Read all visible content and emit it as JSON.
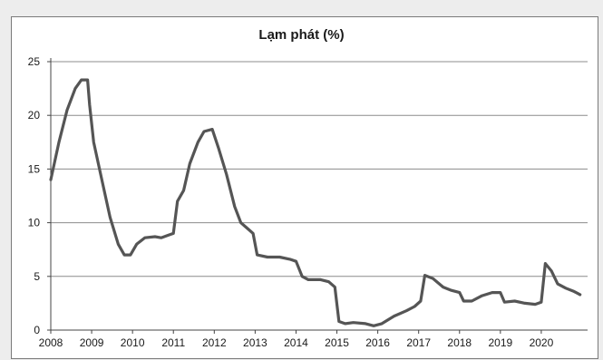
{
  "chart_data": {
    "type": "line",
    "title": "Lạm phát (%)",
    "xlabel": "",
    "ylabel": "",
    "ylim": [
      0,
      25
    ],
    "yticks": [
      0,
      5,
      10,
      15,
      20,
      25
    ],
    "xlim": [
      2008.0,
      2021.0
    ],
    "xtick_labels": [
      "2008",
      "2009",
      "2010",
      "2011",
      "2012",
      "2013",
      "2014",
      "2015",
      "2016",
      "2017",
      "2018",
      "2019",
      "2020"
    ],
    "grid": true,
    "legend": "none",
    "series": [
      {
        "color": "#555555",
        "points": [
          [
            2008.0,
            14.0
          ],
          [
            2008.2,
            17.5
          ],
          [
            2008.4,
            20.5
          ],
          [
            2008.6,
            22.5
          ],
          [
            2008.75,
            23.3
          ],
          [
            2008.9,
            23.3
          ],
          [
            2008.95,
            21.0
          ],
          [
            2009.05,
            17.5
          ],
          [
            2009.25,
            14.0
          ],
          [
            2009.45,
            10.5
          ],
          [
            2009.65,
            8.0
          ],
          [
            2009.8,
            7.0
          ],
          [
            2009.95,
            7.0
          ],
          [
            2010.1,
            8.0
          ],
          [
            2010.3,
            8.6
          ],
          [
            2010.55,
            8.7
          ],
          [
            2010.7,
            8.6
          ],
          [
            2010.85,
            8.8
          ],
          [
            2011.0,
            9.0
          ],
          [
            2011.1,
            12.0
          ],
          [
            2011.25,
            13.0
          ],
          [
            2011.4,
            15.5
          ],
          [
            2011.6,
            17.5
          ],
          [
            2011.75,
            18.5
          ],
          [
            2011.95,
            18.7
          ],
          [
            2012.1,
            17.0
          ],
          [
            2012.3,
            14.5
          ],
          [
            2012.5,
            11.5
          ],
          [
            2012.65,
            10.0
          ],
          [
            2012.8,
            9.5
          ],
          [
            2012.95,
            9.0
          ],
          [
            2013.05,
            7.0
          ],
          [
            2013.3,
            6.8
          ],
          [
            2013.6,
            6.8
          ],
          [
            2013.85,
            6.6
          ],
          [
            2014.0,
            6.4
          ],
          [
            2014.15,
            5.0
          ],
          [
            2014.3,
            4.7
          ],
          [
            2014.6,
            4.7
          ],
          [
            2014.8,
            4.5
          ],
          [
            2014.95,
            4.0
          ],
          [
            2015.05,
            0.8
          ],
          [
            2015.2,
            0.6
          ],
          [
            2015.4,
            0.7
          ],
          [
            2015.7,
            0.6
          ],
          [
            2015.9,
            0.4
          ],
          [
            2016.1,
            0.6
          ],
          [
            2016.4,
            1.3
          ],
          [
            2016.7,
            1.8
          ],
          [
            2016.9,
            2.2
          ],
          [
            2017.05,
            2.7
          ],
          [
            2017.15,
            5.1
          ],
          [
            2017.35,
            4.8
          ],
          [
            2017.6,
            4.0
          ],
          [
            2017.8,
            3.7
          ],
          [
            2018.0,
            3.5
          ],
          [
            2018.1,
            2.7
          ],
          [
            2018.3,
            2.7
          ],
          [
            2018.55,
            3.2
          ],
          [
            2018.8,
            3.5
          ],
          [
            2019.0,
            3.5
          ],
          [
            2019.1,
            2.6
          ],
          [
            2019.35,
            2.7
          ],
          [
            2019.6,
            2.5
          ],
          [
            2019.85,
            2.4
          ],
          [
            2020.0,
            2.6
          ],
          [
            2020.1,
            6.2
          ],
          [
            2020.25,
            5.5
          ],
          [
            2020.4,
            4.3
          ],
          [
            2020.6,
            3.9
          ],
          [
            2020.8,
            3.6
          ],
          [
            2020.95,
            3.3
          ]
        ]
      }
    ]
  }
}
